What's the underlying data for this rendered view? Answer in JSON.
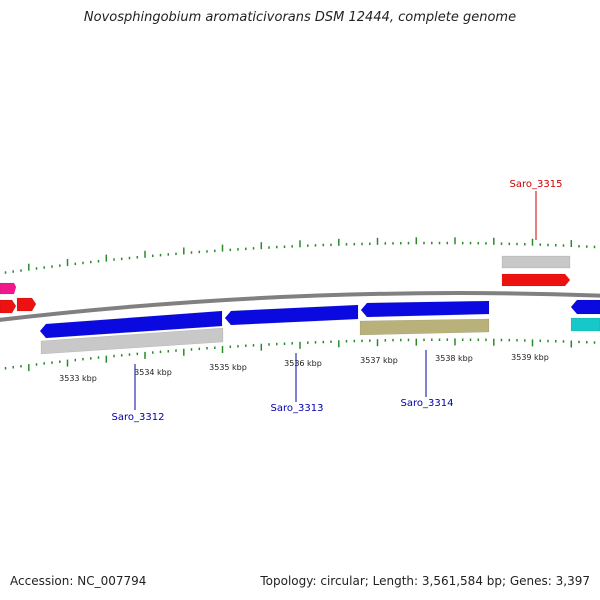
{
  "title": "Novosphingobium aromaticivorans DSM 12444, complete genome",
  "footer": {
    "accession": "Accession: NC_007794",
    "stats": "Topology: circular; Length: 3,561,584 bp; Genes: 3,397"
  },
  "colors": {
    "backbone": "#808080",
    "tick": "#2a8a2a",
    "blue_gene": "#0a0ae0",
    "red_gene": "#ee1111",
    "grey_gene": "#c8c8c8",
    "khaki_gene": "#b8b27a",
    "cyan_gene": "#17c8c8",
    "pink_gene": "#f0188c",
    "label_blue": "#0000aa",
    "label_red": "#cc0000"
  },
  "scale_labels": [
    "3533 kbp",
    "3534 kbp",
    "3535 kbp",
    "3536 kbp",
    "3537 kbp",
    "3538 kbp",
    "3539 kbp"
  ],
  "gene_labels": [
    {
      "text": "Saro_3312",
      "color": "label_blue"
    },
    {
      "text": "Saro_3313",
      "color": "label_blue"
    },
    {
      "text": "Saro_3314",
      "color": "label_blue"
    },
    {
      "text": "Saro_3315",
      "color": "label_red"
    }
  ]
}
